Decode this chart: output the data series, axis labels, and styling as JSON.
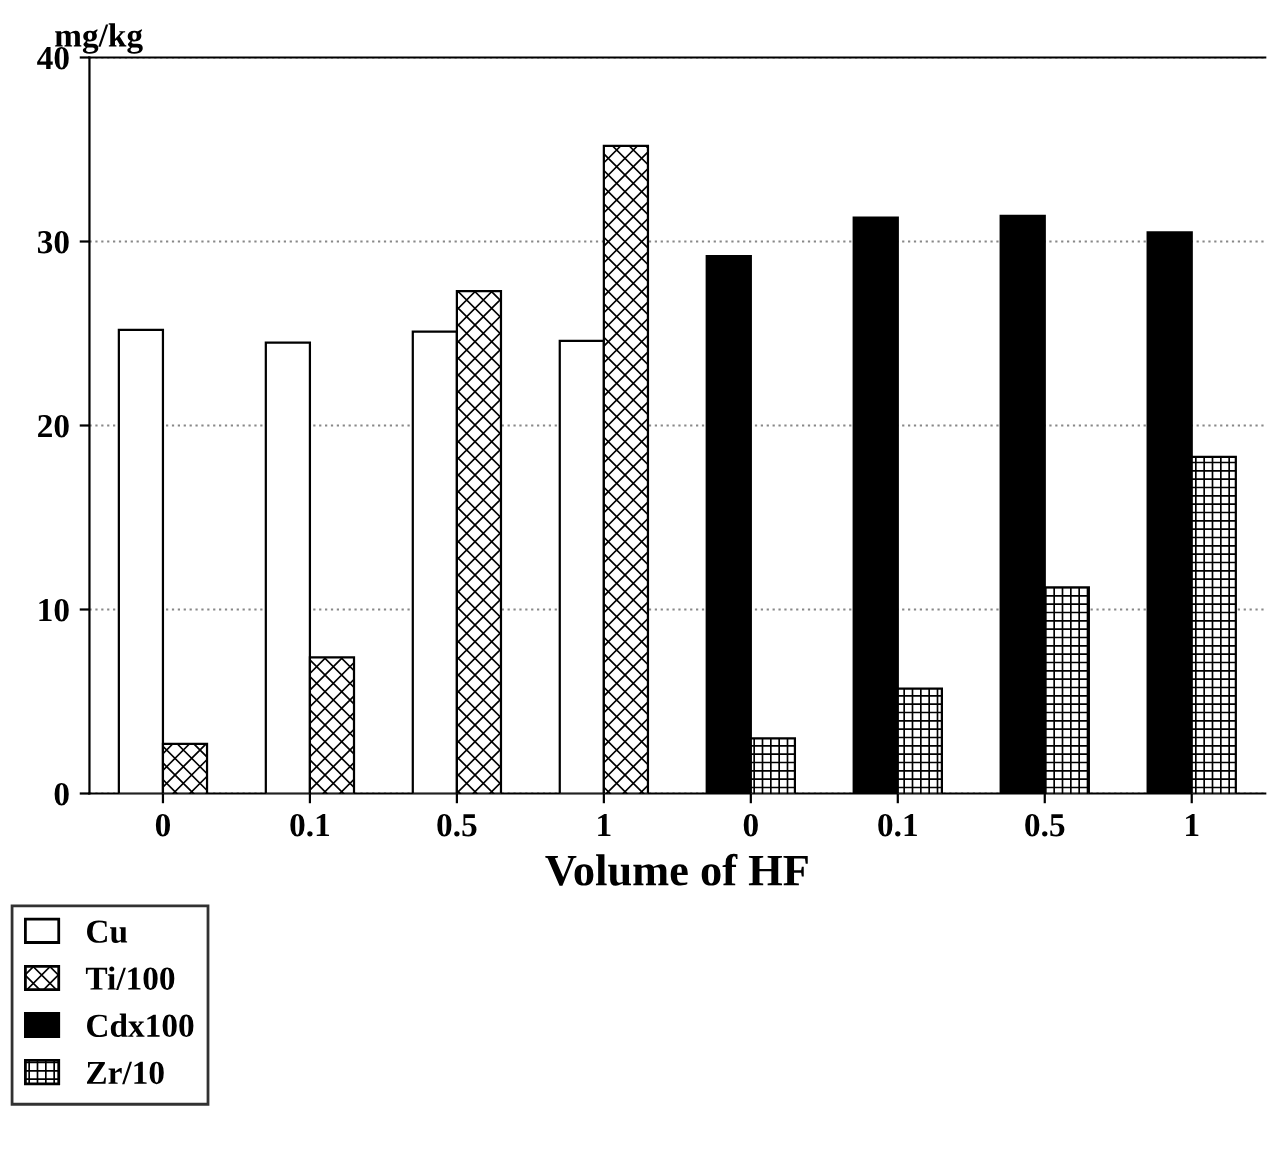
{
  "chart_data": {
    "type": "bar",
    "ylabel": "mg/kg",
    "xlabel": "Volume of HF",
    "categories": [
      "0",
      "0.1",
      "0.5",
      "1",
      "0",
      "0.1",
      "0.5",
      "1"
    ],
    "series": [
      {
        "name": "Cu",
        "color": "#ffffff",
        "values": [
          25.2,
          24.5,
          25.1,
          24.6,
          null,
          null,
          null,
          null
        ]
      },
      {
        "name": "Ti/100",
        "color": "#000000",
        "values": [
          2.7,
          7.4,
          27.3,
          35.2,
          null,
          null,
          null,
          null
        ]
      },
      {
        "name": "Cdx100",
        "color": "#000000",
        "values": [
          null,
          null,
          null,
          null,
          29.2,
          31.3,
          31.4,
          30.5
        ]
      },
      {
        "name": "Zr/10",
        "color": "#000000",
        "values": [
          null,
          null,
          null,
          null,
          3.0,
          5.7,
          11.2,
          18.3
        ]
      }
    ],
    "ylim": [
      0,
      40
    ],
    "yticks": [
      0,
      10,
      20,
      30,
      40
    ],
    "grid": "y",
    "legend": "bottom"
  }
}
